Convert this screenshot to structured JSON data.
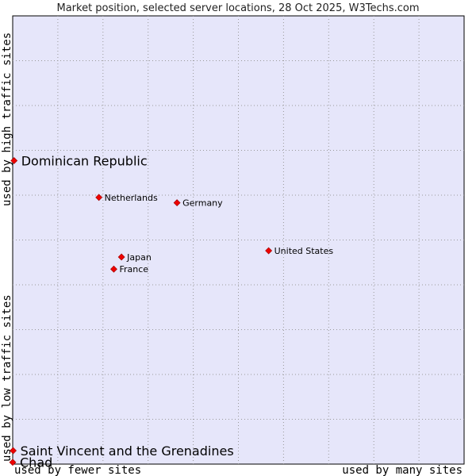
{
  "chart_data": {
    "type": "scatter",
    "title": "Market position, selected server locations, 28 Oct 2025, W3Techs.com",
    "xlabel_left": "used by fewer sites",
    "xlabel_right": "used by many sites",
    "ylabel_bottom": "used by low traffic sites",
    "ylabel_top": "used by high traffic sites",
    "grid": true,
    "xlim": [
      0,
      100
    ],
    "ylim": [
      0,
      100
    ],
    "colors": {
      "plot_background": "#e6e6fa",
      "grid": "#999999",
      "point": "#ee0000",
      "point_outline": "#990000"
    },
    "points": [
      {
        "name": "Dominican Republic",
        "x": 0.3,
        "y": 67.7,
        "size": "large"
      },
      {
        "name": "Netherlands",
        "x": 19.1,
        "y": 59.5,
        "size": "small"
      },
      {
        "name": "Germany",
        "x": 36.4,
        "y": 58.3,
        "size": "small"
      },
      {
        "name": "United States",
        "x": 56.7,
        "y": 47.6,
        "size": "small"
      },
      {
        "name": "Japan",
        "x": 24.1,
        "y": 46.2,
        "size": "small"
      },
      {
        "name": "France",
        "x": 22.4,
        "y": 43.5,
        "size": "small"
      },
      {
        "name": "Saint Vincent and the Grenadines",
        "x": 0.1,
        "y": 3.0,
        "size": "large"
      },
      {
        "name": "Chad",
        "x": 0.0,
        "y": 0.4,
        "size": "large"
      }
    ]
  }
}
